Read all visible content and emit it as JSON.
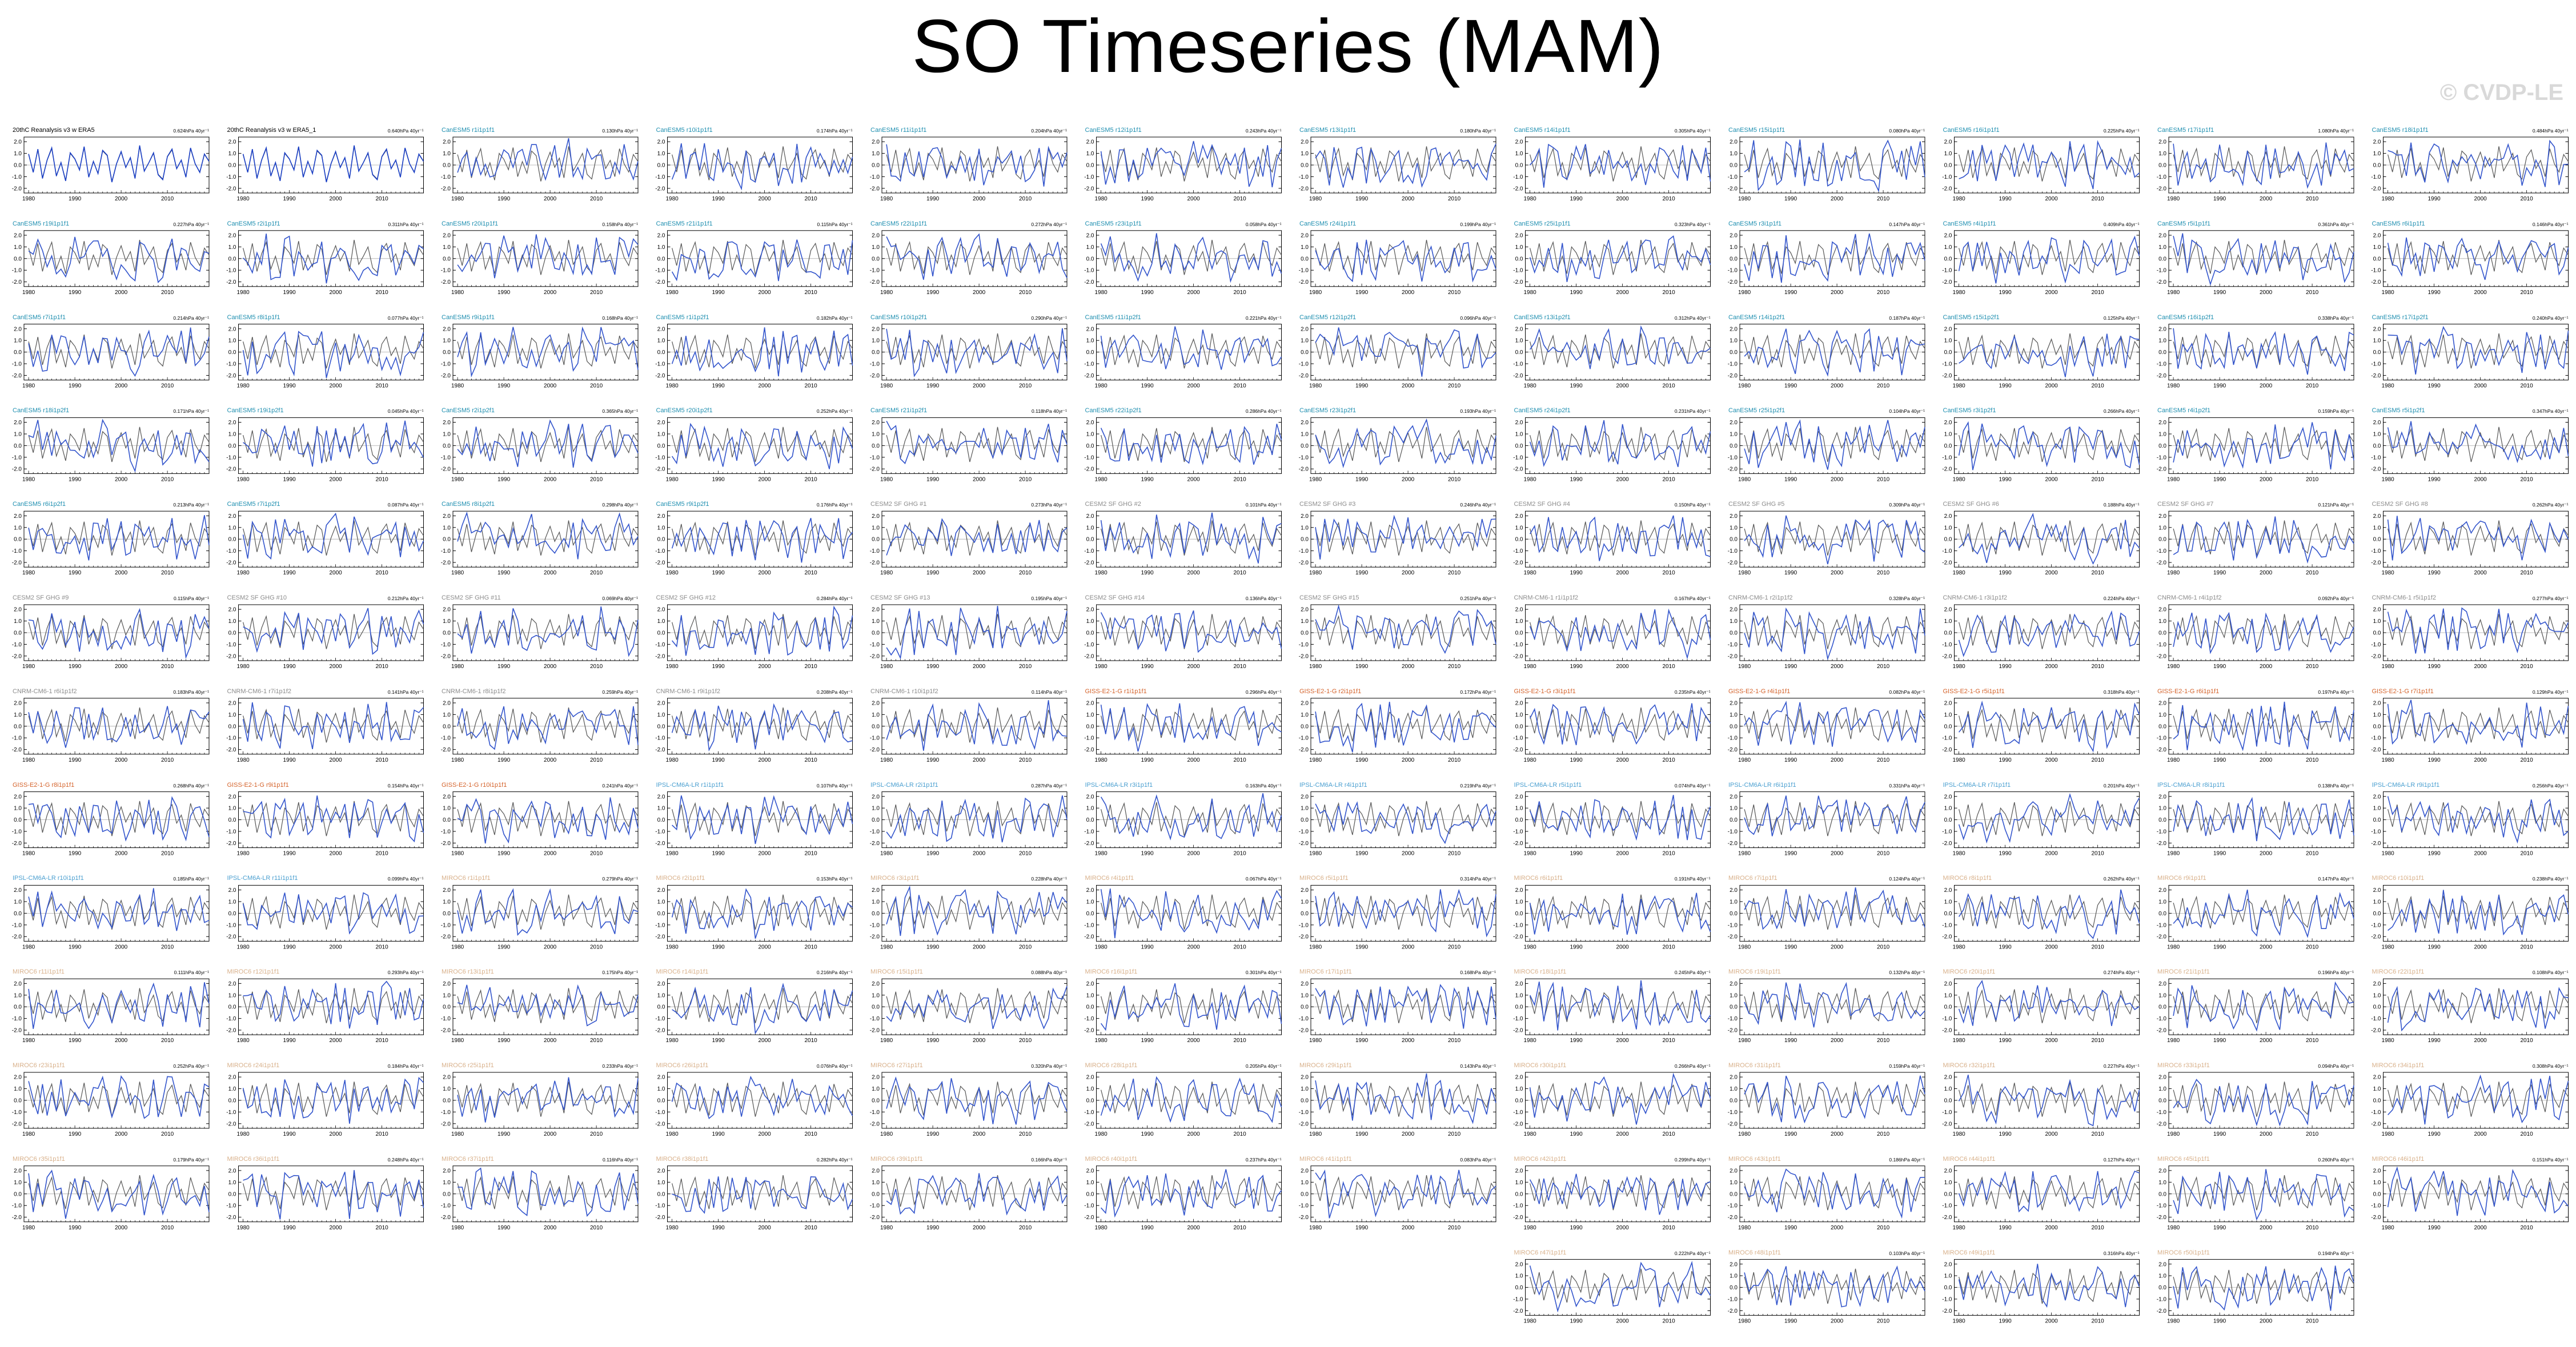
{
  "title": "SO Timeseries (MAM)",
  "watermark": "© CVDP-LE",
  "colors": {
    "model_line": "#3355cc",
    "obs_line": "#555555",
    "zero_line": "#aaaaaa",
    "cesm2_title": "#1f8fb0",
    "cesm_sf_title": "#8c8c8c",
    "cnrm_title": "#8c8c8c",
    "giss_title": "#d4622a",
    "ipsl_title": "#4a9fd0",
    "miroc_title": "#d8b08a"
  },
  "chart_data": {
    "type": "line",
    "layout": "small-multiples",
    "grid": false,
    "series_legend": "none",
    "xlim": [
      1979,
      2019
    ],
    "xticks": [
      1980,
      1990,
      2000,
      2010
    ],
    "yticks": [
      -2.0,
      -1.0,
      0.0,
      1.0,
      2.0
    ],
    "ytick_labels": [
      "-2.0",
      "-1.0",
      "0.0",
      "1.0",
      "2.0"
    ],
    "ylim": [
      -2.4,
      2.4
    ],
    "obs_series": [
      0.9,
      -0.6,
      1.3,
      -1.1,
      0.4,
      1.4,
      -0.9,
      0.2,
      -1.3,
      1.0,
      0.5,
      -0.4,
      1.5,
      -1.0,
      0.3,
      -0.7,
      1.2,
      0.8,
      -1.4,
      0.1,
      1.1,
      -0.2,
      0.6,
      -1.1,
      1.6,
      -0.5,
      0.2,
      1.0,
      -0.8,
      -1.2,
      0.7,
      1.3,
      -0.3,
      0.4,
      -1.0,
      1.4,
      0.1,
      -0.6,
      0.9,
      0.3
    ],
    "panels": [
      {
        "title": "20thC Reanalysis v3 w ERA5",
        "trend": "0.624hPa 40yr⁻¹",
        "group": "obs"
      },
      {
        "title": "20thC Reanalysis v3 w ERA5_1",
        "trend": "0.640hPa 40yr⁻¹",
        "group": "obs"
      },
      {
        "title": "CanESM5 r1i1p1f1",
        "trend": "0.130hPa 40yr⁻¹",
        "group": "cesm2"
      },
      {
        "title": "CanESM5 r10i1p1f1",
        "trend": "0.174hPa 40yr⁻¹",
        "group": "cesm2"
      },
      {
        "title": "CanESM5 r11i1p1f1",
        "trend": "0.204hPa 40yr⁻¹",
        "group": "cesm2"
      },
      {
        "title": "CanESM5 r12i1p1f1",
        "trend": "0.243hPa 40yr⁻¹",
        "group": "cesm2"
      },
      {
        "title": "CanESM5 r13i1p1f1",
        "trend": "0.180hPa 40yr⁻¹",
        "group": "cesm2"
      },
      {
        "title": "CanESM5 r14i1p1f1",
        "trend": "0.305hPa 40yr⁻¹",
        "group": "cesm2"
      },
      {
        "title": "CanESM5 r15i1p1f1",
        "trend": "0.080hPa 40yr⁻¹",
        "group": "cesm2"
      },
      {
        "title": "CanESM5 r16i1p1f1",
        "trend": "0.225hPa 40yr⁻¹",
        "group": "cesm2"
      },
      {
        "title": "CanESM5 r17i1p1f1",
        "trend": "1.080hPa 40yr⁻¹",
        "group": "cesm2"
      },
      {
        "title": "CanESM5 r18i1p1f1",
        "trend": "0.484hPa 40yr⁻¹",
        "group": "cesm2"
      },
      {
        "title": "CanESM5 r19i1p1f1",
        "trend": "0.227hPa 40yr⁻¹",
        "group": "cesm2"
      },
      {
        "title": "CanESM5 r2i1p1f1",
        "trend": "0.311hPa 40yr⁻¹",
        "group": "cesm2"
      },
      {
        "title": "CanESM5 r20i1p1f1",
        "trend": "0.158hPa 40yr⁻¹",
        "group": "cesm2"
      },
      {
        "title": "CanESM5 r21i1p1f1",
        "trend": "0.115hPa 40yr⁻¹",
        "group": "cesm2"
      },
      {
        "title": "CanESM5 r22i1p1f1",
        "trend": "0.272hPa 40yr⁻¹",
        "group": "cesm2"
      },
      {
        "title": "CanESM5 r23i1p1f1",
        "trend": "0.058hPa 40yr⁻¹",
        "group": "cesm2"
      },
      {
        "title": "CanESM5 r24i1p1f1",
        "trend": "0.199hPa 40yr⁻¹",
        "group": "cesm2"
      },
      {
        "title": "CanESM5 r25i1p1f1",
        "trend": "0.323hPa 40yr⁻¹",
        "group": "cesm2"
      },
      {
        "title": "CanESM5 r3i1p1f1",
        "trend": "0.147hPa 40yr⁻¹",
        "group": "cesm2"
      },
      {
        "title": "CanESM5 r4i1p1f1",
        "trend": "0.409hPa 40yr⁻¹",
        "group": "cesm2"
      },
      {
        "title": "CanESM5 r5i1p1f1",
        "trend": "0.361hPa 40yr⁻¹",
        "group": "cesm2"
      },
      {
        "title": "CanESM5 r6i1p1f1",
        "trend": "0.146hPa 40yr⁻¹",
        "group": "cesm2"
      },
      {
        "title": "CanESM5 r7i1p1f1",
        "trend": "0.214hPa 40yr⁻¹",
        "group": "cesm2"
      },
      {
        "title": "CanESM5 r8i1p1f1",
        "trend": "0.077hPa 40yr⁻¹",
        "group": "cesm2"
      },
      {
        "title": "CanESM5 r9i1p1f1",
        "trend": "0.168hPa 40yr⁻¹",
        "group": "cesm2"
      },
      {
        "title": "CanESM5 r1i1p2f1",
        "trend": "0.182hPa 40yr⁻¹",
        "group": "cesm2"
      },
      {
        "title": "CanESM5 r10i1p2f1",
        "trend": "0.290hPa 40yr⁻¹",
        "group": "cesm2"
      },
      {
        "title": "CanESM5 r11i1p2f1",
        "trend": "0.221hPa 40yr⁻¹",
        "group": "cesm2"
      },
      {
        "title": "CanESM5 r12i1p2f1",
        "trend": "0.096hPa 40yr⁻¹",
        "group": "cesm2"
      },
      {
        "title": "CanESM5 r13i1p2f1",
        "trend": "0.312hPa 40yr⁻¹",
        "group": "cesm2"
      },
      {
        "title": "CanESM5 r14i1p2f1",
        "trend": "0.187hPa 40yr⁻¹",
        "group": "cesm2"
      },
      {
        "title": "CanESM5 r15i1p2f1",
        "trend": "0.125hPa 40yr⁻¹",
        "group": "cesm2"
      },
      {
        "title": "CanESM5 r16i1p2f1",
        "trend": "0.338hPa 40yr⁻¹",
        "group": "cesm2"
      },
      {
        "title": "CanESM5 r17i1p2f1",
        "trend": "0.240hPa 40yr⁻¹",
        "group": "cesm2"
      },
      {
        "title": "CanESM5 r18i1p2f1",
        "trend": "0.171hPa 40yr⁻¹",
        "group": "cesm2"
      },
      {
        "title": "CanESM5 r19i1p2f1",
        "trend": "0.045hPa 40yr⁻¹",
        "group": "cesm2"
      },
      {
        "title": "CanESM5 r2i1p2f1",
        "trend": "0.365hPa 40yr⁻¹",
        "group": "cesm2"
      },
      {
        "title": "CanESM5 r20i1p2f1",
        "trend": "0.252hPa 40yr⁻¹",
        "group": "cesm2"
      },
      {
        "title": "CanESM5 r21i1p2f1",
        "trend": "0.118hPa 40yr⁻¹",
        "group": "cesm2"
      },
      {
        "title": "CanESM5 r22i1p2f1",
        "trend": "0.286hPa 40yr⁻¹",
        "group": "cesm2"
      },
      {
        "title": "CanESM5 r23i1p2f1",
        "trend": "0.193hPa 40yr⁻¹",
        "group": "cesm2"
      },
      {
        "title": "CanESM5 r24i1p2f1",
        "trend": "0.231hPa 40yr⁻¹",
        "group": "cesm2"
      },
      {
        "title": "CanESM5 r25i1p2f1",
        "trend": "0.104hPa 40yr⁻¹",
        "group": "cesm2"
      },
      {
        "title": "CanESM5 r3i1p2f1",
        "trend": "0.266hPa 40yr⁻¹",
        "group": "cesm2"
      },
      {
        "title": "CanESM5 r4i1p2f1",
        "trend": "0.159hPa 40yr⁻¹",
        "group": "cesm2"
      },
      {
        "title": "CanESM5 r5i1p2f1",
        "trend": "0.347hPa 40yr⁻¹",
        "group": "cesm2"
      },
      {
        "title": "CanESM5 r6i1p2f1",
        "trend": "0.213hPa 40yr⁻¹",
        "group": "cesm2"
      },
      {
        "title": "CanESM5 r7i1p2f1",
        "trend": "0.087hPa 40yr⁻¹",
        "group": "cesm2"
      },
      {
        "title": "CanESM5 r8i1p2f1",
        "trend": "0.298hPa 40yr⁻¹",
        "group": "cesm2"
      },
      {
        "title": "CanESM5 r9i1p2f1",
        "trend": "0.176hPa 40yr⁻¹",
        "group": "cesm2"
      },
      {
        "title": "CESM2 SF GHG #1",
        "trend": "0.273hPa 40yr⁻¹",
        "group": "cesm_sf"
      },
      {
        "title": "CESM2 SF GHG #2",
        "trend": "0.101hPa 40yr⁻¹",
        "group": "cesm_sf"
      },
      {
        "title": "CESM2 SF GHG #3",
        "trend": "0.246hPa 40yr⁻¹",
        "group": "cesm_sf"
      },
      {
        "title": "CESM2 SF GHG #4",
        "trend": "0.150hPa 40yr⁻¹",
        "group": "cesm_sf"
      },
      {
        "title": "CESM2 SF GHG #5",
        "trend": "0.309hPa 40yr⁻¹",
        "group": "cesm_sf"
      },
      {
        "title": "CESM2 SF GHG #6",
        "trend": "0.188hPa 40yr⁻¹",
        "group": "cesm_sf"
      },
      {
        "title": "CESM2 SF GHG #7",
        "trend": "0.121hPa 40yr⁻¹",
        "group": "cesm_sf"
      },
      {
        "title": "CESM2 SF GHG #8",
        "trend": "0.262hPa 40yr⁻¹",
        "group": "cesm_sf"
      },
      {
        "title": "CESM2 SF GHG #9",
        "trend": "0.115hPa 40yr⁻¹",
        "group": "cesm_sf"
      },
      {
        "title": "CESM2 SF GHG #10",
        "trend": "0.212hPa 40yr⁻¹",
        "group": "cesm_sf"
      },
      {
        "title": "CESM2 SF GHG #11",
        "trend": "0.069hPa 40yr⁻¹",
        "group": "cesm_sf"
      },
      {
        "title": "CESM2 SF GHG #12",
        "trend": "0.284hPa 40yr⁻¹",
        "group": "cesm_sf"
      },
      {
        "title": "CESM2 SF GHG #13",
        "trend": "0.195hPa 40yr⁻¹",
        "group": "cesm_sf"
      },
      {
        "title": "CESM2 SF GHG #14",
        "trend": "0.136hPa 40yr⁻¹",
        "group": "cesm_sf"
      },
      {
        "title": "CESM2 SF GHG #15",
        "trend": "0.251hPa 40yr⁻¹",
        "group": "cesm_sf"
      },
      {
        "title": "CNRM-CM6-1 r1i1p1f2",
        "trend": "0.167hPa 40yr⁻¹",
        "group": "cnrm"
      },
      {
        "title": "CNRM-CM6-1 r2i1p1f2",
        "trend": "0.328hPa 40yr⁻¹",
        "group": "cnrm"
      },
      {
        "title": "CNRM-CM6-1 r3i1p1f2",
        "trend": "0.224hPa 40yr⁻¹",
        "group": "cnrm"
      },
      {
        "title": "CNRM-CM6-1 r4i1p1f2",
        "trend": "0.092hPa 40yr⁻¹",
        "group": "cnrm"
      },
      {
        "title": "CNRM-CM6-1 r5i1p1f2",
        "trend": "0.277hPa 40yr⁻¹",
        "group": "cnrm"
      },
      {
        "title": "CNRM-CM6-1 r6i1p1f2",
        "trend": "0.183hPa 40yr⁻¹",
        "group": "cnrm"
      },
      {
        "title": "CNRM-CM6-1 r7i1p1f2",
        "trend": "0.141hPa 40yr⁻¹",
        "group": "cnrm"
      },
      {
        "title": "CNRM-CM6-1 r8i1p1f2",
        "trend": "0.259hPa 40yr⁻¹",
        "group": "cnrm"
      },
      {
        "title": "CNRM-CM6-1 r9i1p1f2",
        "trend": "0.208hPa 40yr⁻¹",
        "group": "cnrm"
      },
      {
        "title": "CNRM-CM6-1 r10i1p1f2",
        "trend": "0.114hPa 40yr⁻¹",
        "group": "cnrm"
      },
      {
        "title": "GISS-E2-1-G r1i1p1f1",
        "trend": "0.296hPa 40yr⁻¹",
        "group": "giss"
      },
      {
        "title": "GISS-E2-1-G r2i1p1f1",
        "trend": "0.172hPa 40yr⁻¹",
        "group": "giss"
      },
      {
        "title": "GISS-E2-1-G r3i1p1f1",
        "trend": "0.235hPa 40yr⁻¹",
        "group": "giss"
      },
      {
        "title": "GISS-E2-1-G r4i1p1f1",
        "trend": "0.082hPa 40yr⁻¹",
        "group": "giss"
      },
      {
        "title": "GISS-E2-1-G r5i1p1f1",
        "trend": "0.318hPa 40yr⁻¹",
        "group": "giss"
      },
      {
        "title": "GISS-E2-1-G r6i1p1f1",
        "trend": "0.197hPa 40yr⁻¹",
        "group": "giss"
      },
      {
        "title": "GISS-E2-1-G r7i1p1f1",
        "trend": "0.129hPa 40yr⁻¹",
        "group": "giss"
      },
      {
        "title": "GISS-E2-1-G r8i1p1f1",
        "trend": "0.268hPa 40yr⁻¹",
        "group": "giss"
      },
      {
        "title": "GISS-E2-1-G r9i1p1f1",
        "trend": "0.154hPa 40yr⁻¹",
        "group": "giss"
      },
      {
        "title": "GISS-E2-1-G r10i1p1f1",
        "trend": "0.241hPa 40yr⁻¹",
        "group": "giss"
      },
      {
        "title": "IPSL-CM6A-LR r1i1p1f1",
        "trend": "0.107hPa 40yr⁻¹",
        "group": "ipsl"
      },
      {
        "title": "IPSL-CM6A-LR r2i1p1f1",
        "trend": "0.287hPa 40yr⁻¹",
        "group": "ipsl"
      },
      {
        "title": "IPSL-CM6A-LR r3i1p1f1",
        "trend": "0.163hPa 40yr⁻¹",
        "group": "ipsl"
      },
      {
        "title": "IPSL-CM6A-LR r4i1p1f1",
        "trend": "0.219hPa 40yr⁻¹",
        "group": "ipsl"
      },
      {
        "title": "IPSL-CM6A-LR r5i1p1f1",
        "trend": "0.074hPa 40yr⁻¹",
        "group": "ipsl"
      },
      {
        "title": "IPSL-CM6A-LR r6i1p1f1",
        "trend": "0.331hPa 40yr⁻¹",
        "group": "ipsl"
      },
      {
        "title": "IPSL-CM6A-LR r7i1p1f1",
        "trend": "0.201hPa 40yr⁻¹",
        "group": "ipsl"
      },
      {
        "title": "IPSL-CM6A-LR r8i1p1f1",
        "trend": "0.138hPa 40yr⁻¹",
        "group": "ipsl"
      },
      {
        "title": "IPSL-CM6A-LR r9i1p1f1",
        "trend": "0.256hPa 40yr⁻¹",
        "group": "ipsl"
      },
      {
        "title": "IPSL-CM6A-LR r10i1p1f1",
        "trend": "0.185hPa 40yr⁻¹",
        "group": "ipsl"
      },
      {
        "title": "IPSL-CM6A-LR r11i1p1f1",
        "trend": "0.099hPa 40yr⁻¹",
        "group": "ipsl"
      },
      {
        "title": "MIROC6 r1i1p1f1",
        "trend": "0.279hPa 40yr⁻¹",
        "group": "miroc"
      },
      {
        "title": "MIROC6 r2i1p1f1",
        "trend": "0.153hPa 40yr⁻¹",
        "group": "miroc"
      },
      {
        "title": "MIROC6 r3i1p1f1",
        "trend": "0.228hPa 40yr⁻¹",
        "group": "miroc"
      },
      {
        "title": "MIROC6 r4i1p1f1",
        "trend": "0.067hPa 40yr⁻¹",
        "group": "miroc"
      },
      {
        "title": "MIROC6 r5i1p1f1",
        "trend": "0.314hPa 40yr⁻¹",
        "group": "miroc"
      },
      {
        "title": "MIROC6 r6i1p1f1",
        "trend": "0.191hPa 40yr⁻¹",
        "group": "miroc"
      },
      {
        "title": "MIROC6 r7i1p1f1",
        "trend": "0.124hPa 40yr⁻¹",
        "group": "miroc"
      },
      {
        "title": "MIROC6 r8i1p1f1",
        "trend": "0.262hPa 40yr⁻¹",
        "group": "miroc"
      },
      {
        "title": "MIROC6 r9i1p1f1",
        "trend": "0.147hPa 40yr⁻¹",
        "group": "miroc"
      },
      {
        "title": "MIROC6 r10i1p1f1",
        "trend": "0.238hPa 40yr⁻¹",
        "group": "miroc"
      },
      {
        "title": "MIROC6 r11i1p1f1",
        "trend": "0.111hPa 40yr⁻¹",
        "group": "miroc"
      },
      {
        "title": "MIROC6 r12i1p1f1",
        "trend": "0.293hPa 40yr⁻¹",
        "group": "miroc"
      },
      {
        "title": "MIROC6 r13i1p1f1",
        "trend": "0.175hPa 40yr⁻¹",
        "group": "miroc"
      },
      {
        "title": "MIROC6 r14i1p1f1",
        "trend": "0.216hPa 40yr⁻¹",
        "group": "miroc"
      },
      {
        "title": "MIROC6 r15i1p1f1",
        "trend": "0.088hPa 40yr⁻¹",
        "group": "miroc"
      },
      {
        "title": "MIROC6 r16i1p1f1",
        "trend": "0.301hPa 40yr⁻¹",
        "group": "miroc"
      },
      {
        "title": "MIROC6 r17i1p1f1",
        "trend": "0.168hPa 40yr⁻¹",
        "group": "miroc"
      },
      {
        "title": "MIROC6 r18i1p1f1",
        "trend": "0.245hPa 40yr⁻¹",
        "group": "miroc"
      },
      {
        "title": "MIROC6 r19i1p1f1",
        "trend": "0.132hPa 40yr⁻¹",
        "group": "miroc"
      },
      {
        "title": "MIROC6 r20i1p1f1",
        "trend": "0.274hPa 40yr⁻¹",
        "group": "miroc"
      },
      {
        "title": "MIROC6 r21i1p1f1",
        "trend": "0.196hPa 40yr⁻¹",
        "group": "miroc"
      },
      {
        "title": "MIROC6 r22i1p1f1",
        "trend": "0.108hPa 40yr⁻¹",
        "group": "miroc"
      },
      {
        "title": "MIROC6 r23i1p1f1",
        "trend": "0.252hPa 40yr⁻¹",
        "group": "miroc"
      },
      {
        "title": "MIROC6 r24i1p1f1",
        "trend": "0.184hPa 40yr⁻¹",
        "group": "miroc"
      },
      {
        "title": "MIROC6 r25i1p1f1",
        "trend": "0.233hPa 40yr⁻¹",
        "group": "miroc"
      },
      {
        "title": "MIROC6 r26i1p1f1",
        "trend": "0.076hPa 40yr⁻¹",
        "group": "miroc"
      },
      {
        "title": "MIROC6 r27i1p1f1",
        "trend": "0.320hPa 40yr⁻¹",
        "group": "miroc"
      },
      {
        "title": "MIROC6 r28i1p1f1",
        "trend": "0.205hPa 40yr⁻¹",
        "group": "miroc"
      },
      {
        "title": "MIROC6 r29i1p1f1",
        "trend": "0.143hPa 40yr⁻¹",
        "group": "miroc"
      },
      {
        "title": "MIROC6 r30i1p1f1",
        "trend": "0.266hPa 40yr⁻¹",
        "group": "miroc"
      },
      {
        "title": "MIROC6 r31i1p1f1",
        "trend": "0.159hPa 40yr⁻¹",
        "group": "miroc"
      },
      {
        "title": "MIROC6 r32i1p1f1",
        "trend": "0.227hPa 40yr⁻¹",
        "group": "miroc"
      },
      {
        "title": "MIROC6 r33i1p1f1",
        "trend": "0.094hPa 40yr⁻¹",
        "group": "miroc"
      },
      {
        "title": "MIROC6 r34i1p1f1",
        "trend": "0.308hPa 40yr⁻¹",
        "group": "miroc"
      },
      {
        "title": "MIROC6 r35i1p1f1",
        "trend": "0.179hPa 40yr⁻¹",
        "group": "miroc"
      },
      {
        "title": "MIROC6 r36i1p1f1",
        "trend": "0.248hPa 40yr⁻¹",
        "group": "miroc"
      },
      {
        "title": "MIROC6 r37i1p1f1",
        "trend": "0.116hPa 40yr⁻¹",
        "group": "miroc"
      },
      {
        "title": "MIROC6 r38i1p1f1",
        "trend": "0.282hPa 40yr⁻¹",
        "group": "miroc"
      },
      {
        "title": "MIROC6 r39i1p1f1",
        "trend": "0.166hPa 40yr⁻¹",
        "group": "miroc"
      },
      {
        "title": "MIROC6 r40i1p1f1",
        "trend": "0.237hPa 40yr⁻¹",
        "group": "miroc"
      },
      {
        "title": "MIROC6 r41i1p1f1",
        "trend": "0.083hPa 40yr⁻¹",
        "group": "miroc"
      },
      {
        "title": "MIROC6 r42i1p1f1",
        "trend": "0.299hPa 40yr⁻¹",
        "group": "miroc"
      },
      {
        "title": "MIROC6 r43i1p1f1",
        "trend": "0.186hPa 40yr⁻¹",
        "group": "miroc"
      },
      {
        "title": "MIROC6 r44i1p1f1",
        "trend": "0.127hPa 40yr⁻¹",
        "group": "miroc"
      },
      {
        "title": "MIROC6 r45i1p1f1",
        "trend": "0.260hPa 40yr⁻¹",
        "group": "miroc"
      },
      {
        "title": "MIROC6 r46i1p1f1",
        "trend": "0.151hPa 40yr⁻¹",
        "group": "miroc"
      },
      {
        "title": "MIROC6 r47i1p1f1",
        "trend": "0.222hPa 40yr⁻¹",
        "group": "miroc"
      },
      {
        "title": "MIROC6 r48i1p1f1",
        "trend": "0.103hPa 40yr⁻¹",
        "group": "miroc"
      },
      {
        "title": "MIROC6 r49i1p1f1",
        "trend": "0.316hPa 40yr⁻¹",
        "group": "miroc"
      },
      {
        "title": "MIROC6 r50i1p1f1",
        "trend": "0.194hPa 40yr⁻¹",
        "group": "miroc"
      }
    ]
  }
}
